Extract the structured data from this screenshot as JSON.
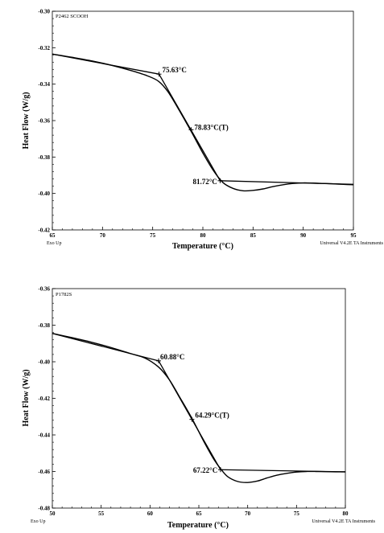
{
  "chart_data": [
    {
      "type": "line",
      "sample_label": "P2462 SCOOH",
      "xlabel": "Temperature (°C)",
      "ylabel": "Heat Flow (W/g)",
      "xlim": [
        65,
        95
      ],
      "ylim": [
        -0.42,
        -0.3
      ],
      "x_ticks": [
        "65",
        "70",
        "75",
        "80",
        "85",
        "90",
        "95"
      ],
      "y_ticks": [
        "-0.30",
        "-0.32",
        "-0.34",
        "-0.36",
        "-0.38",
        "-0.40",
        "-0.42"
      ],
      "footer_left": "Exo Up",
      "footer_right": "Universal V4.2E TA Instruments",
      "series": [
        {
          "x": [
            65,
            67,
            69,
            71,
            73,
            74.5,
            75.6,
            76.5,
            77.5,
            78.8,
            80,
            81,
            82,
            83,
            84,
            85,
            86,
            87,
            88,
            89,
            90,
            91,
            92,
            93,
            94,
            95
          ],
          "y": [
            -0.3235,
            -0.3253,
            -0.3273,
            -0.3298,
            -0.3328,
            -0.3355,
            -0.3385,
            -0.344,
            -0.353,
            -0.3656,
            -0.3778,
            -0.387,
            -0.394,
            -0.3972,
            -0.3985,
            -0.3983,
            -0.3975,
            -0.3962,
            -0.3952,
            -0.3945,
            -0.3942,
            -0.3943,
            -0.3945,
            -0.3947,
            -0.395,
            -0.3952
          ]
        }
      ],
      "tangents": [
        {
          "x": [
            65,
            75.63
          ],
          "y": [
            -0.3235,
            -0.3345
          ]
        },
        {
          "x": [
            75.63,
            81.72
          ],
          "y": [
            -0.3345,
            -0.393
          ]
        },
        {
          "x": [
            81.72,
            95
          ],
          "y": [
            -0.393,
            -0.395
          ]
        }
      ],
      "annotations": [
        {
          "label": "75.63°C",
          "x": 75.63,
          "y": -0.3345
        },
        {
          "label": "78.83°C(T)",
          "x": 78.83,
          "y": -0.365
        },
        {
          "label": "81.72°C",
          "x": 81.72,
          "y": -0.393
        }
      ]
    },
    {
      "type": "line",
      "sample_label": "P1782S",
      "xlabel": "Temperature (°C)",
      "ylabel": "Heat Flow (W/g)",
      "xlim": [
        50,
        80
      ],
      "ylim": [
        -0.48,
        -0.36
      ],
      "x_ticks": [
        "50",
        "55",
        "60",
        "65",
        "70",
        "75",
        "80"
      ],
      "y_ticks": [
        "-0.36",
        "-0.38",
        "-0.40",
        "-0.42",
        "-0.44",
        "-0.46",
        "-0.48"
      ],
      "footer_left": "Exo Up",
      "footer_right": "Universal V4.2E TA Instruments",
      "series": [
        {
          "x": [
            50,
            52,
            54,
            56,
            58,
            59.5,
            60.9,
            62,
            63,
            64.3,
            65.5,
            66.5,
            67.3,
            68,
            69,
            70,
            71,
            72,
            73,
            74,
            75,
            76,
            77,
            78,
            79,
            80
          ],
          "y": [
            -0.3845,
            -0.3868,
            -0.3893,
            -0.3922,
            -0.3955,
            -0.398,
            -0.403,
            -0.41,
            -0.419,
            -0.431,
            -0.4435,
            -0.453,
            -0.459,
            -0.463,
            -0.4655,
            -0.466,
            -0.4652,
            -0.4635,
            -0.462,
            -0.461,
            -0.4603,
            -0.46,
            -0.46,
            -0.4601,
            -0.4602,
            -0.4602
          ]
        }
      ],
      "tangents": [
        {
          "x": [
            50,
            60.88
          ],
          "y": [
            -0.3845,
            -0.3995
          ]
        },
        {
          "x": [
            60.88,
            67.22
          ],
          "y": [
            -0.3995,
            -0.459
          ]
        },
        {
          "x": [
            67.22,
            80
          ],
          "y": [
            -0.459,
            -0.4602
          ]
        }
      ],
      "annotations": [
        {
          "label": "60.88°C",
          "x": 60.88,
          "y": -0.3995
        },
        {
          "label": "64.29°C(T)",
          "x": 64.29,
          "y": -0.4315
        },
        {
          "label": "67.22°C",
          "x": 67.22,
          "y": -0.459
        }
      ]
    }
  ]
}
